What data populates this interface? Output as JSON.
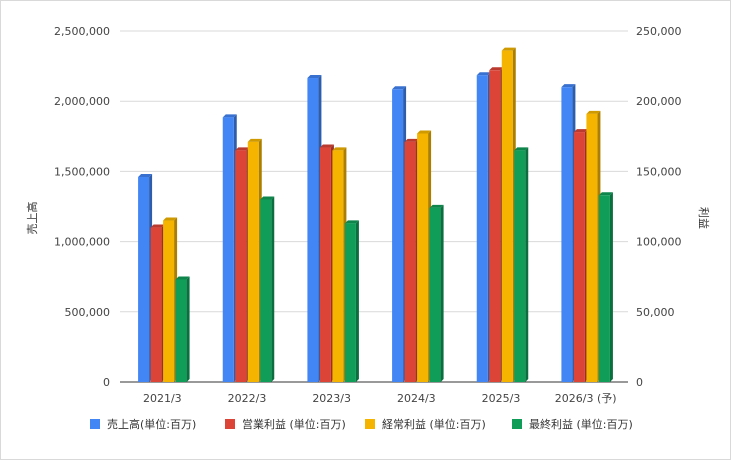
{
  "chart_data": {
    "type": "bar",
    "categories": [
      "2021/3",
      "2022/3",
      "2023/3",
      "2024/3",
      "2025/3",
      "2026/3 (予)"
    ],
    "ylabel_left": "売上高",
    "ylabel_right": "利益",
    "ylim_left": [
      0,
      2500000
    ],
    "ylim_right": [
      0,
      250000
    ],
    "yticks_left": [
      "0",
      "500,000",
      "1,000,000",
      "1,500,000",
      "2,000,000",
      "2,500,000"
    ],
    "yticks_right": [
      "0",
      "50,000",
      "100,000",
      "150,000",
      "200,000",
      "250,000"
    ],
    "grid": true,
    "legend_position": "bottom",
    "series": [
      {
        "name": "売上高(単位:百万)",
        "axis": "left",
        "color": "#4285f4",
        "values": [
          1460000,
          1885000,
          2165000,
          2085000,
          2185000,
          2100000
        ]
      },
      {
        "name": "営業利益 (単位:百万)",
        "axis": "right",
        "color": "#db4437",
        "values": [
          110000,
          165000,
          167000,
          171000,
          222000,
          178000
        ]
      },
      {
        "name": "経常利益 (単位:百万)",
        "axis": "right",
        "color": "#f4b400",
        "values": [
          115000,
          171000,
          165000,
          177000,
          236000,
          191000
        ]
      },
      {
        "name": "最終利益 (単位:百万)",
        "axis": "right",
        "color": "#0f9d58",
        "values": [
          73000,
          130000,
          113000,
          124000,
          165000,
          133000
        ]
      }
    ]
  }
}
